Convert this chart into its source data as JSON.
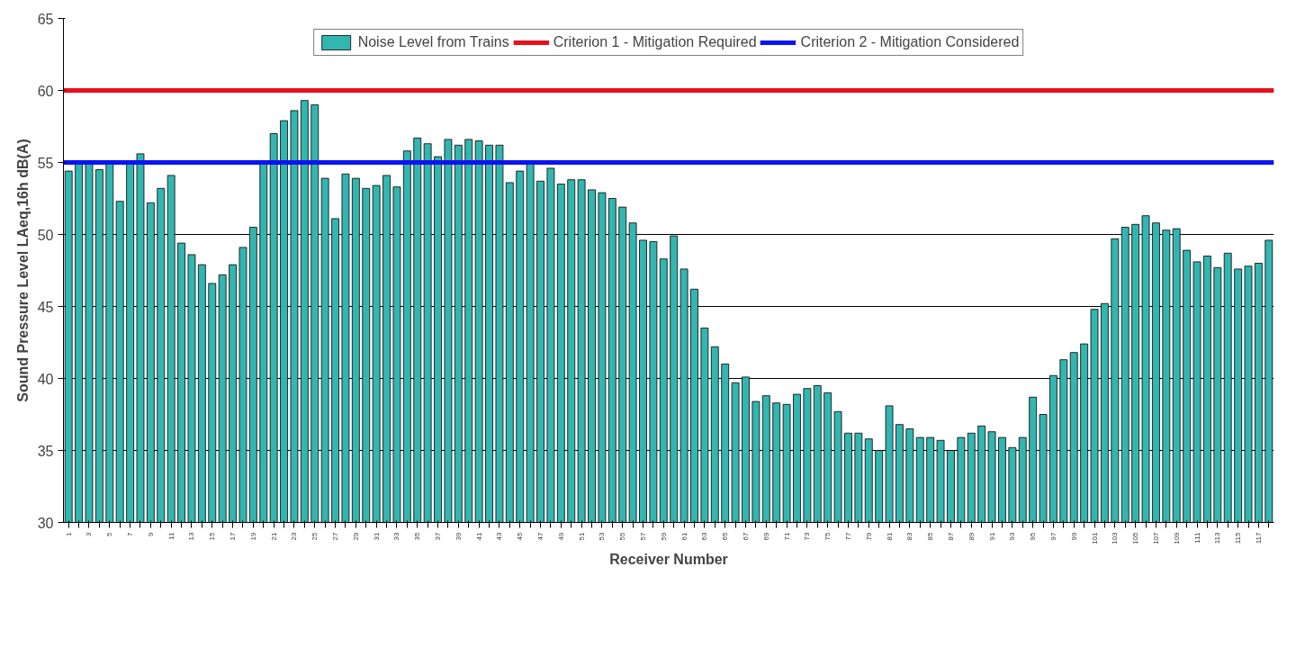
{
  "chart_data": {
    "type": "bar",
    "xlabel": "Receiver Number",
    "ylabel": "Sound Pressure Level LAeq,16h dB(A)",
    "categories": [
      "1",
      null,
      "3",
      null,
      "5",
      null,
      "7",
      null,
      "9",
      null,
      "11",
      null,
      "13",
      null,
      "15",
      null,
      "17",
      null,
      "19",
      null,
      "21",
      null,
      "23",
      null,
      "25",
      null,
      "27",
      null,
      "29",
      null,
      "31",
      null,
      "33",
      null,
      "35",
      null,
      "37",
      null,
      "39",
      null,
      "41",
      null,
      "43",
      null,
      "45",
      null,
      "47",
      null,
      "49",
      null,
      "51",
      null,
      "53",
      null,
      "55",
      null,
      "57",
      null,
      "59",
      null,
      "61",
      null,
      "63",
      null,
      "65",
      null,
      "67",
      null,
      "69",
      null,
      "71",
      null,
      "73",
      null,
      "75",
      null,
      "77",
      null,
      "79",
      null,
      "81",
      null,
      "83",
      null,
      "85",
      null,
      "87",
      null,
      "89",
      null,
      "91",
      null,
      "93",
      null,
      "95",
      null,
      "97",
      null,
      "99",
      null,
      "101",
      null,
      "103",
      null,
      "105",
      null,
      "107",
      null,
      "109",
      null,
      "111",
      null,
      "113",
      null,
      "115",
      null,
      "117",
      null
    ],
    "series": [
      {
        "name": "Noise Level from Trains",
        "color": "#33b5b0",
        "values": [
          54.4,
          54.9,
          55.0,
          54.5,
          55.0,
          52.3,
          55.0,
          55.6,
          52.2,
          53.2,
          54.1,
          49.4,
          48.6,
          47.9,
          46.6,
          47.2,
          47.9,
          49.1,
          50.5,
          55.0,
          57.0,
          57.9,
          58.6,
          59.3,
          59.0,
          53.9,
          51.1,
          54.2,
          53.9,
          53.2,
          53.4,
          54.1,
          53.3,
          55.8,
          56.7,
          56.3,
          55.4,
          56.6,
          56.2,
          56.6,
          56.5,
          56.2,
          56.2,
          53.6,
          54.4,
          55.0,
          53.7,
          54.6,
          53.5,
          53.8,
          53.8,
          53.1,
          52.9,
          52.5,
          51.9,
          50.8,
          49.6,
          49.5,
          48.3,
          49.9,
          47.6,
          46.2,
          43.5,
          42.2,
          41.0,
          39.7,
          40.1,
          38.4,
          38.8,
          38.3,
          38.2,
          38.9,
          39.3,
          39.5,
          39.0,
          37.7,
          36.2,
          36.2,
          35.8,
          35.0,
          38.1,
          36.8,
          36.5,
          35.9,
          35.9,
          35.7,
          35.0,
          35.9,
          36.2,
          36.7,
          36.3,
          35.9,
          35.2,
          35.9,
          38.7,
          37.5,
          40.2,
          41.3,
          41.8,
          42.4,
          44.8,
          45.2,
          49.7,
          50.5,
          50.7,
          51.3,
          50.8,
          50.3,
          50.4,
          48.9,
          48.1,
          48.5,
          47.7,
          48.7,
          47.6,
          47.8,
          48.0,
          49.6
        ]
      }
    ],
    "ref_lines": [
      {
        "axis": "y",
        "value": 60,
        "label": "Criterion 1 - Mitigation Required",
        "color": "#e8101a"
      },
      {
        "axis": "y",
        "value": 55,
        "label": "Criterion 2 - Mitigation Considered",
        "color": "#0a14f0"
      }
    ],
    "ylim": [
      30,
      65
    ],
    "yticks": [
      30,
      35,
      40,
      45,
      50,
      55,
      60,
      65
    ],
    "grid": "y",
    "legend": "top"
  }
}
